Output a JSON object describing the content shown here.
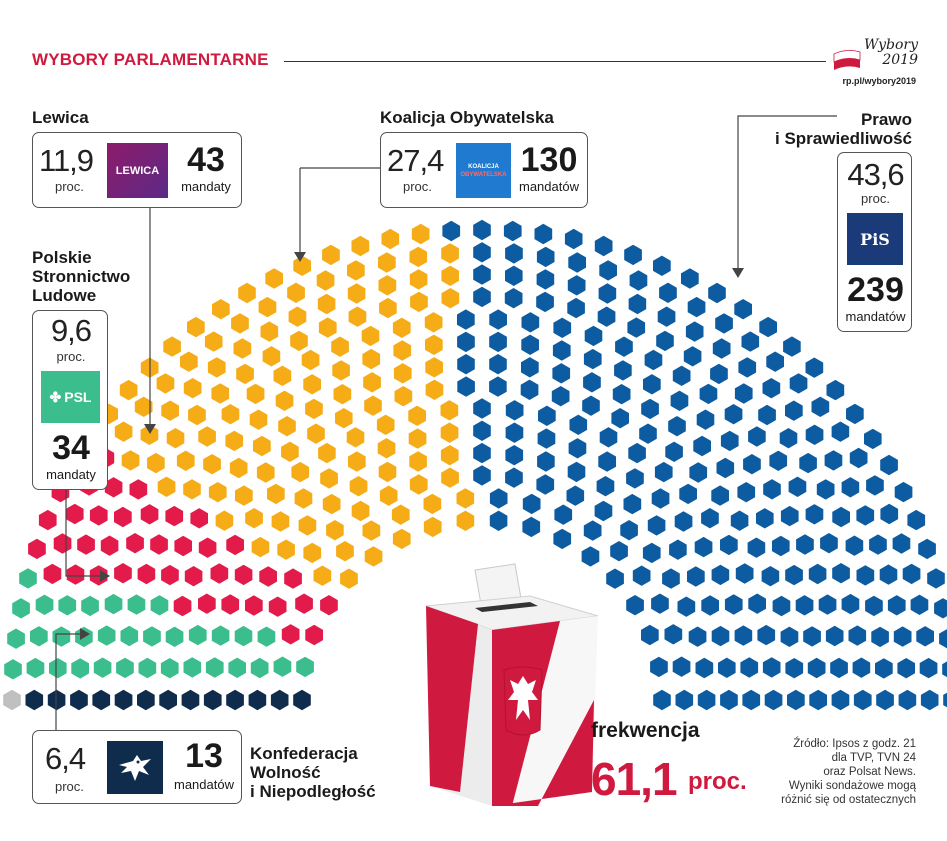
{
  "header": {
    "title": "WYBORY PARLAMENTARNE"
  },
  "brand": {
    "script_line1": "Wybory",
    "script_line2": "2019",
    "url": "rp.pl/wybory2019"
  },
  "colors": {
    "pis": "#0d5ba0",
    "ko": "#f5ac17",
    "lewica": "#e31b4a",
    "psl": "#3cbd8d",
    "konf": "#0f2c4d",
    "other": "#c0c0c0",
    "accent": "#d0193e"
  },
  "parties": {
    "lewica": {
      "name": "Lewica",
      "percent": "11,9",
      "proc": "proc.",
      "seats": "43",
      "seats_label": "mandaty",
      "logo": "LEWICA"
    },
    "ko": {
      "name": "Koalicja Obywatelska",
      "percent": "27,4",
      "proc": "proc.",
      "seats": "130",
      "seats_label": "mandatów",
      "logo_line1": "KOALICJA",
      "logo_line2": "OBYWATELSKA"
    },
    "pis": {
      "name_line1": "Prawo",
      "name_line2": "i Sprawiedliwość",
      "percent": "43,6",
      "proc": "proc.",
      "seats": "239",
      "seats_label": "mandatów",
      "logo": "PiS"
    },
    "psl": {
      "name_line1": "Polskie",
      "name_line2": "Stronnictwo",
      "name_line3": "Ludowe",
      "percent": "9,6",
      "proc": "proc.",
      "seats": "34",
      "seats_label": "mandaty",
      "logo": "PSL"
    },
    "konf": {
      "name_line1": "Konfederacja",
      "name_line2": "Wolność",
      "name_line3": "i Niepodległość",
      "percent": "6,4",
      "proc": "proc.",
      "seats": "13",
      "seats_label": "mandatów"
    }
  },
  "turnout": {
    "label": "frekwencja",
    "value": "61,1",
    "unit": "proc."
  },
  "source": {
    "line1": "Źródło: Ipsos z godz. 21",
    "line2": "dla TVP, TVN 24",
    "line3": "oraz Polsat News.",
    "line4": "Wyniki sondażowe mogą",
    "line5": "różnić się od ostatecznych"
  },
  "chart_data": {
    "type": "parliament",
    "total_seats": 460,
    "series": [
      {
        "name": "Prawo i Sprawiedliwość",
        "seats": 239,
        "percent": 43.6,
        "color": "#0d5ba0"
      },
      {
        "name": "Koalicja Obywatelska",
        "seats": 130,
        "percent": 27.4,
        "color": "#f5ac17"
      },
      {
        "name": "Lewica",
        "seats": 43,
        "percent": 11.9,
        "color": "#e31b4a"
      },
      {
        "name": "Polskie Stronnictwo Ludowe",
        "seats": 34,
        "percent": 9.6,
        "color": "#3cbd8d"
      },
      {
        "name": "Konfederacja Wolność i Niepodległość",
        "seats": 13,
        "percent": 6.4,
        "color": "#0f2c4d"
      },
      {
        "seats": 1,
        "color": "#c0c0c0"
      }
    ]
  }
}
